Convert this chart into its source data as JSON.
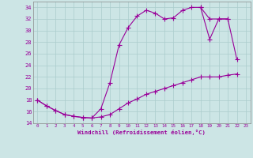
{
  "xlabel": "Windchill (Refroidissement éolien,°C)",
  "background_color": "#cce5e5",
  "grid_color": "#aacccc",
  "line_color": "#990099",
  "xlim": [
    -0.5,
    23.5
  ],
  "ylim": [
    14,
    35
  ],
  "xticks": [
    0,
    1,
    2,
    3,
    4,
    5,
    6,
    7,
    8,
    9,
    10,
    11,
    12,
    13,
    14,
    15,
    16,
    17,
    18,
    19,
    20,
    21,
    22,
    23
  ],
  "yticks": [
    14,
    16,
    18,
    20,
    22,
    24,
    26,
    28,
    30,
    32,
    34
  ],
  "line_top_x": [
    0,
    1,
    2,
    3,
    4,
    5,
    6,
    7,
    8,
    9,
    10,
    11,
    12,
    13,
    14,
    15,
    16,
    17,
    18,
    19,
    20,
    21
  ],
  "line_top_y": [
    18.0,
    17.0,
    16.2,
    15.5,
    15.2,
    15.0,
    14.9,
    16.5,
    21.0,
    27.5,
    30.5,
    32.5,
    33.5,
    33.0,
    32.0,
    32.2,
    33.5,
    34.0,
    34.0,
    32.0,
    32.0,
    32.0
  ],
  "line_bot_x": [
    0,
    1,
    2,
    3,
    4,
    5,
    6,
    7,
    8,
    9,
    10,
    11,
    12,
    13,
    14,
    15,
    16,
    17,
    18,
    19,
    20,
    21,
    22
  ],
  "line_bot_y": [
    18.0,
    17.0,
    16.2,
    15.5,
    15.2,
    15.0,
    14.9,
    15.1,
    15.5,
    16.5,
    17.5,
    18.2,
    19.0,
    19.5,
    20.0,
    20.5,
    21.0,
    21.5,
    22.0,
    22.0,
    22.0,
    22.3,
    22.5
  ],
  "line_right_x": [
    18,
    19,
    20,
    21,
    22
  ],
  "line_right_y": [
    34.0,
    28.5,
    32.0,
    32.0,
    25.0
  ]
}
